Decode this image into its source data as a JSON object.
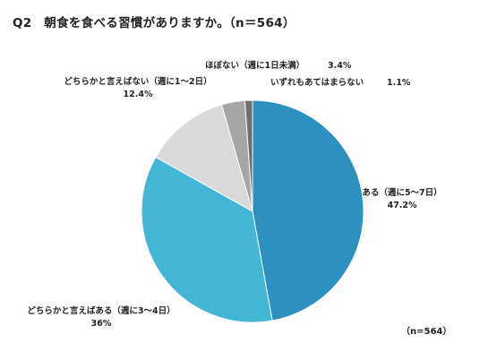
{
  "title": "Q2　朝食を食べる習慣がありますか。（n＝564）",
  "note": "（n=564）",
  "chart_data": {
    "type": "pie",
    "title": "Q2　朝食を食べる習慣がありますか。（n＝564）",
    "sample_size_label": "（n=564）",
    "start_angle": "12 o'clock",
    "direction": "clockwise",
    "slices": [
      {
        "label": "ある（週に5～7日）",
        "value": 47.2,
        "value_label": "47.2%",
        "color": "#2e8fc1"
      },
      {
        "label": "どちらかと言えばある（週に3～4日）",
        "value": 36,
        "value_label": "36%",
        "color": "#43b6d6"
      },
      {
        "label": "どちらかと言えばない（週に1～2日）",
        "value": 12.4,
        "value_label": "12.4%",
        "color": "#d9d9d9"
      },
      {
        "label": "ほぼない（週に1日未満）",
        "value": 3.4,
        "value_label": "3.4%",
        "color": "#a6a6a6"
      },
      {
        "label": "いずれもあてはまらない",
        "value": 1.1,
        "value_label": "1.1%",
        "color": "#6e6e6e"
      }
    ]
  }
}
